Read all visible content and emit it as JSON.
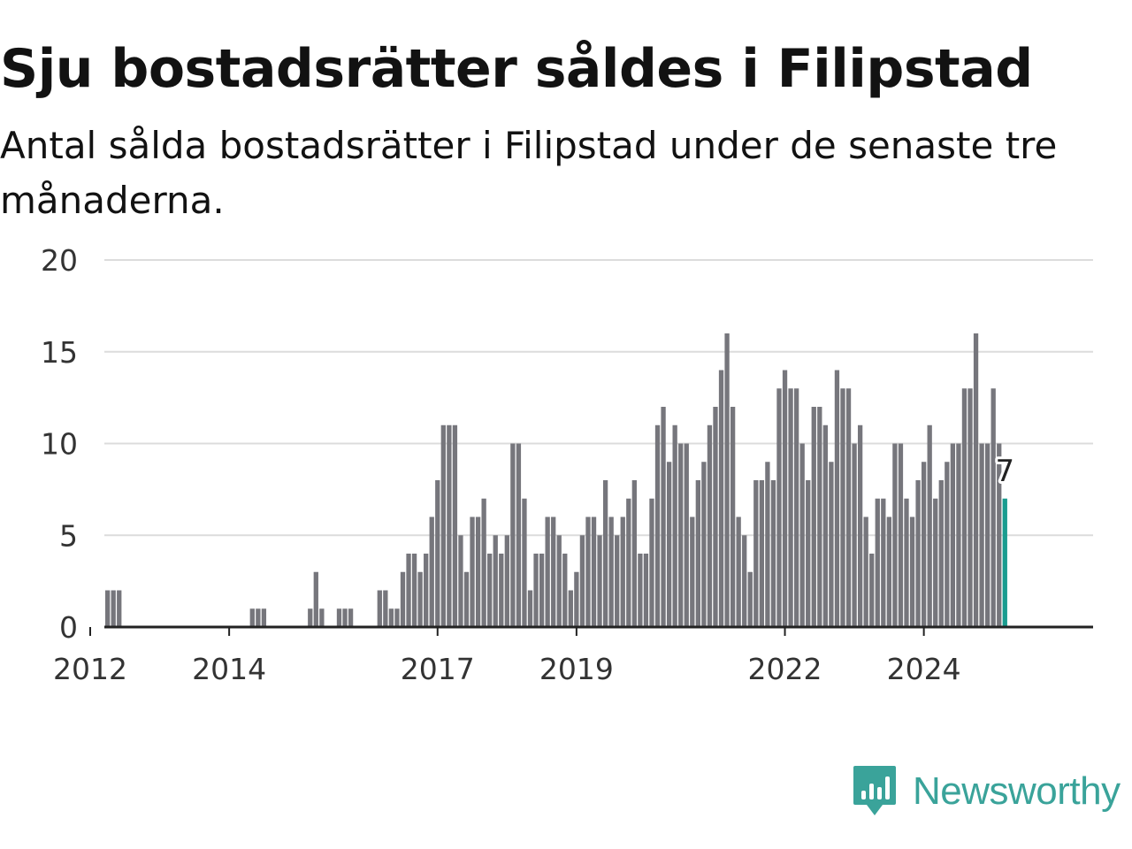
{
  "header": {
    "title": "Sju bostadsrätter såldes i Filipstad",
    "subtitle": "Antal sålda bostadsrätter i Filipstad under de senaste tre månaderna."
  },
  "brand": {
    "name": "Newsworthy",
    "icon": "newsworthy-logo-icon"
  },
  "colors": {
    "bar": "#76767c",
    "highlight": "#1a9c8f",
    "grid": "#dcdcdc",
    "axis": "#222222",
    "brand": "#3aa39a"
  },
  "chart_data": {
    "type": "bar",
    "series": [
      {
        "values": [
          2,
          2,
          2,
          0,
          0,
          0,
          0,
          0,
          0,
          0,
          0,
          0,
          0,
          0,
          0,
          0,
          0,
          0,
          0,
          0,
          0,
          0,
          0,
          0,
          0,
          1,
          1,
          1,
          0,
          0,
          0,
          0,
          0,
          0,
          0,
          1,
          3,
          1,
          0,
          0,
          1,
          1,
          1,
          0,
          0,
          0,
          0,
          2,
          2,
          1,
          1,
          3,
          4,
          4,
          3,
          4,
          6,
          8,
          11,
          11,
          11,
          5,
          3,
          6,
          6,
          7,
          4,
          5,
          4,
          5,
          10,
          10,
          7,
          2,
          4,
          4,
          6,
          6,
          5,
          4,
          2,
          3,
          5,
          6,
          6,
          5,
          8,
          6,
          5,
          6,
          7,
          8,
          4,
          4,
          7,
          11,
          12,
          9,
          11,
          10,
          10,
          6,
          8,
          9,
          11,
          12,
          14,
          16,
          12,
          6,
          5,
          3,
          8,
          8,
          9,
          8,
          13,
          14,
          13,
          13,
          10,
          8,
          12,
          12,
          11,
          9,
          14,
          13,
          13,
          10,
          11,
          6,
          4,
          7,
          7,
          6,
          10,
          10,
          7,
          6,
          8,
          9,
          11,
          7,
          8,
          9,
          10,
          10,
          13,
          13,
          16,
          10,
          10,
          13,
          10,
          7
        ]
      }
    ],
    "x_ticks": [
      "2012",
      "2014",
      "2017",
      "2019",
      "2022",
      "2024"
    ],
    "y_ticks": [
      "0",
      "5",
      "10",
      "15",
      "20"
    ],
    "ylim": [
      0,
      20
    ],
    "highlight_last": true,
    "last_value_label": "7",
    "grid": true
  }
}
